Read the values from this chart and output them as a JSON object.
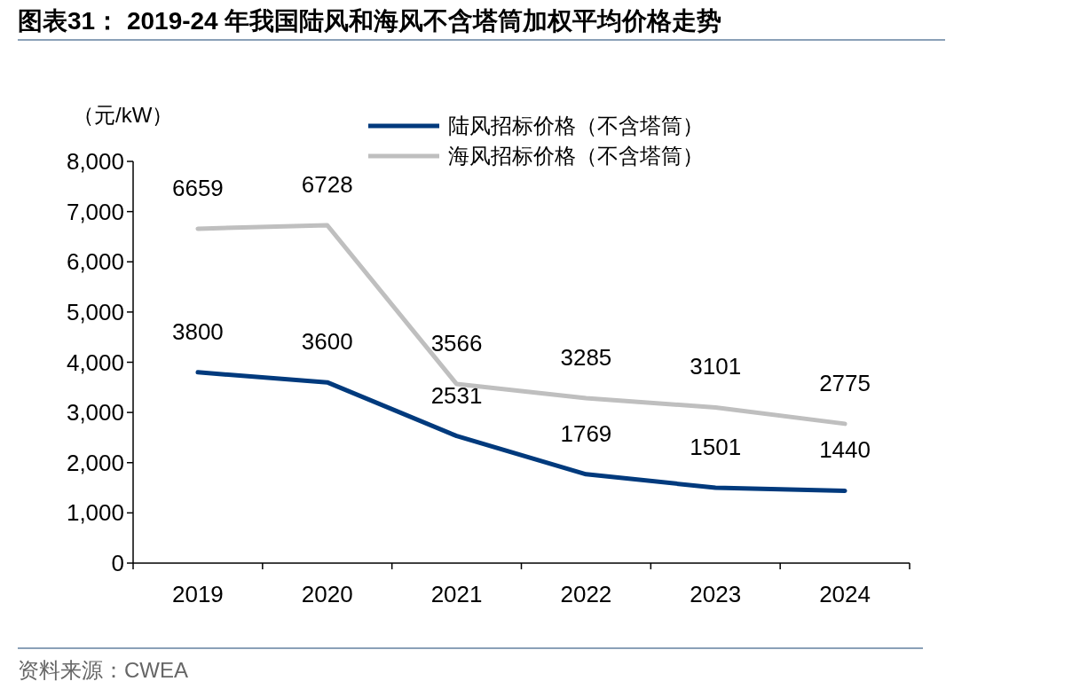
{
  "chart_data": {
    "type": "line",
    "title": "图表31： 2019-24 年我国陆风和海风不含塔筒加权平均价格走势",
    "ylabel": "（元/kW）",
    "annotations": [
      "资料来源：CWEA"
    ],
    "categories": [
      "2019",
      "2020",
      "2021",
      "2022",
      "2023",
      "2024"
    ],
    "series": [
      {
        "name": "陆风招标价格（不含塔筒）",
        "color": "#003a7d",
        "values": [
          3800,
          3600,
          2531,
          1769,
          1501,
          1440
        ]
      },
      {
        "name": "海风招标价格（不含塔筒）",
        "color": "#bfbfbf",
        "values": [
          6659,
          6728,
          3566,
          3285,
          3101,
          2775
        ]
      }
    ],
    "ylim": [
      0,
      8000
    ],
    "yticks": [
      {
        "value": 0,
        "label": "0"
      },
      {
        "value": 1000,
        "label": "1,000"
      },
      {
        "value": 2000,
        "label": "2,000"
      },
      {
        "value": 3000,
        "label": "3,000"
      },
      {
        "value": 4000,
        "label": "4,000"
      },
      {
        "value": 5000,
        "label": "5,000"
      },
      {
        "value": 6000,
        "label": "6,000"
      },
      {
        "value": 7000,
        "label": "7,000"
      },
      {
        "value": 8000,
        "label": "8,000"
      }
    ],
    "data_labels": true,
    "legend": "top",
    "grid": false
  }
}
